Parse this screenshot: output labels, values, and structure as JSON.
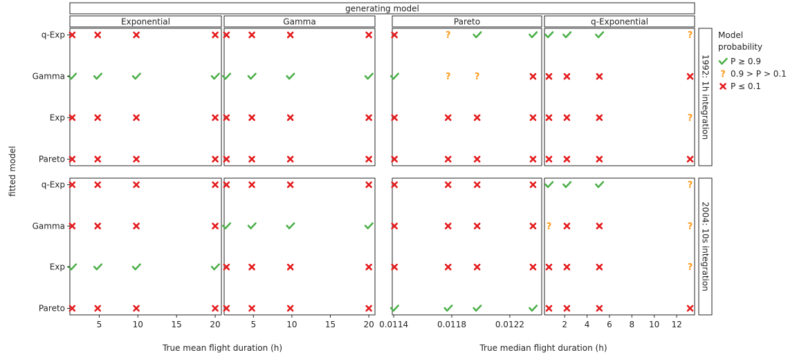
{
  "chart_data": {
    "type": "scatter",
    "top_strip": "generating model",
    "columns": [
      "Exponential",
      "Gamma",
      "Pareto",
      "q-Exponential"
    ],
    "rows": [
      "1992: 1h integration",
      "2004: 10s integration"
    ],
    "y_axis": {
      "label": "fitted model",
      "categories": [
        "q-Exp",
        "Gamma",
        "Exp",
        "Pareto"
      ]
    },
    "x_axes": [
      {
        "label": "True mean flight duration (h)",
        "ticks": [
          5,
          10,
          15,
          20
        ],
        "range": [
          1.2,
          20.8
        ],
        "panels": [
          "Exponential",
          "Gamma"
        ]
      },
      {
        "label": "True median flight duration (h)",
        "ticks": [
          0.0114,
          0.0118,
          0.0122
        ],
        "range": [
          0.01139,
          0.01242
        ],
        "panels": [
          "Pareto"
        ]
      },
      {
        "label": "True median flight duration (h)",
        "ticks": [
          2,
          4,
          6,
          8,
          10,
          12
        ],
        "range": [
          0.2,
          13.6
        ],
        "panels": [
          "q-Exponential"
        ]
      }
    ],
    "legend": {
      "title": "Model probability",
      "placement": "right",
      "items": [
        {
          "key": "high",
          "label": "P ≥ 0.9",
          "symbol": "check",
          "color": "#4daf4a"
        },
        {
          "key": "mid",
          "label": "0.9 > P > 0.1",
          "symbol": "question",
          "color": "#ff9a1a"
        },
        {
          "key": "low",
          "label": "P ≤ 0.1",
          "symbol": "cross",
          "color": "#e41a1c"
        }
      ]
    },
    "panels": [
      {
        "row": 0,
        "col": 0,
        "x": [
          1.5,
          4.8,
          9.8,
          20.0
        ],
        "points": {
          "q-Exp": [
            "low",
            "low",
            "low",
            "low"
          ],
          "Gamma": [
            "high",
            "high",
            "high",
            "high"
          ],
          "Exp": [
            "low",
            "low",
            "low",
            "low"
          ],
          "Pareto": [
            "low",
            "low",
            "low",
            "low"
          ]
        }
      },
      {
        "row": 0,
        "col": 1,
        "x": [
          1.5,
          4.8,
          9.8,
          20.0
        ],
        "points": {
          "q-Exp": [
            "low",
            "low",
            "low",
            "low"
          ],
          "Gamma": [
            "high",
            "high",
            "high",
            "high"
          ],
          "Exp": [
            "low",
            "low",
            "low",
            "low"
          ],
          "Pareto": [
            "low",
            "low",
            "low",
            "low"
          ]
        }
      },
      {
        "row": 0,
        "col": 2,
        "x": [
          0.011405,
          0.011775,
          0.011975,
          0.01236
        ],
        "points": {
          "q-Exp": [
            "low",
            "mid",
            "high",
            "high"
          ],
          "Gamma": [
            "high",
            "mid",
            "mid",
            "low"
          ],
          "Exp": [
            "low",
            "low",
            "low",
            "low"
          ],
          "Pareto": [
            "low",
            "low",
            "low",
            "low"
          ]
        }
      },
      {
        "row": 0,
        "col": 3,
        "x": [
          0.6,
          2.2,
          5.1,
          13.2
        ],
        "points": {
          "q-Exp": [
            "high",
            "high",
            "high",
            "mid"
          ],
          "Gamma": [
            "low",
            "low",
            "low",
            "low"
          ],
          "Exp": [
            "low",
            "low",
            "low",
            "mid"
          ],
          "Pareto": [
            "low",
            "low",
            "low",
            "low"
          ]
        }
      },
      {
        "row": 1,
        "col": 0,
        "x": [
          1.5,
          4.8,
          9.8,
          20.0
        ],
        "points": {
          "q-Exp": [
            "low",
            "low",
            "low",
            "low"
          ],
          "Gamma": [
            "low",
            "low",
            "low",
            "low"
          ],
          "Exp": [
            "high",
            "high",
            "high",
            "high"
          ],
          "Pareto": [
            "low",
            "low",
            "low",
            "low"
          ]
        }
      },
      {
        "row": 1,
        "col": 1,
        "x": [
          1.5,
          4.8,
          9.8,
          20.0
        ],
        "points": {
          "q-Exp": [
            "low",
            "low",
            "low",
            "low"
          ],
          "Gamma": [
            "high",
            "high",
            "high",
            "high"
          ],
          "Exp": [
            "low",
            "low",
            "low",
            "low"
          ],
          "Pareto": [
            "low",
            "low",
            "low",
            "low"
          ]
        }
      },
      {
        "row": 1,
        "col": 2,
        "x": [
          0.011405,
          0.011775,
          0.011975,
          0.01236
        ],
        "points": {
          "q-Exp": [
            "low",
            "low",
            "low",
            "low"
          ],
          "Gamma": [
            "low",
            "low",
            "low",
            "low"
          ],
          "Exp": [
            "low",
            "low",
            "low",
            "low"
          ],
          "Pareto": [
            "high",
            "high",
            "high",
            "high"
          ]
        }
      },
      {
        "row": 1,
        "col": 3,
        "x": [
          0.6,
          2.2,
          5.1,
          13.2
        ],
        "points": {
          "q-Exp": [
            "high",
            "high",
            "high",
            "mid"
          ],
          "Gamma": [
            "mid",
            "low",
            "low",
            "mid"
          ],
          "Exp": [
            "low",
            "low",
            "low",
            "mid"
          ],
          "Pareto": [
            "low",
            "low",
            "low",
            "low"
          ]
        }
      }
    ]
  }
}
